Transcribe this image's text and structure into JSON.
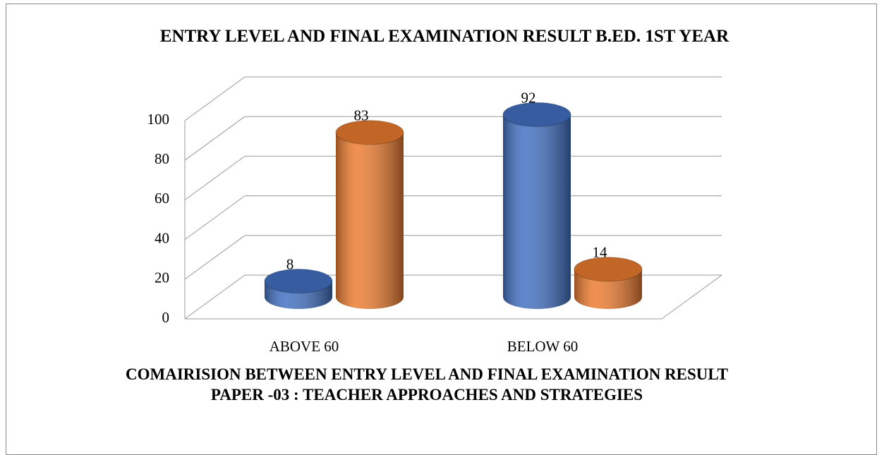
{
  "chart_data": {
    "type": "bar3d",
    "title": "ENTRY LEVEL AND FINAL EXAMINATION RESULT B.ED. 1ST YEAR",
    "categories": [
      "ABOVE 60",
      "BELOW 60"
    ],
    "series": [
      {
        "color": "#4472c4",
        "values": [
          8,
          92
        ]
      },
      {
        "color": "#ed7d31",
        "values": [
          83,
          14
        ]
      }
    ],
    "ylim": [
      0,
      100
    ],
    "yticks": [
      0,
      20,
      40,
      60,
      80,
      100
    ],
    "grid": true,
    "caption_lines": [
      "COMAIRISION BETWEEN ENTRY LEVEL AND FINAL EXAMINATION RESULT",
      "PAPER -03 : TEACHER APPROACHES AND STRATEGIES"
    ]
  }
}
